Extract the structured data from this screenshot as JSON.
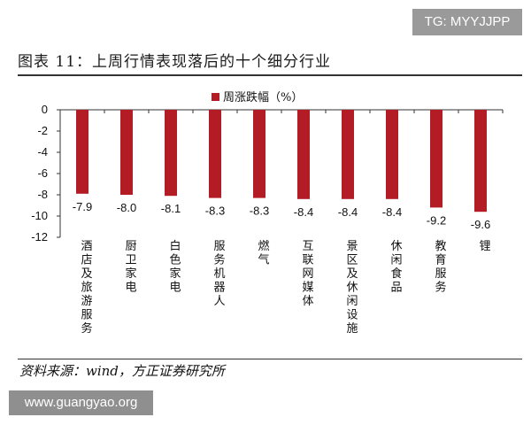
{
  "watermark_top": "TG: MYYJJPP",
  "figure_title": "图表 11：上周行情表现落后的十个细分行业",
  "source_note": "资料来源：wind，方正证券研究所",
  "watermark_bottom": "www.guangyao.org",
  "colors": {
    "bar": "#b31b25",
    "axis": "#333333"
  },
  "chart_data": {
    "type": "bar",
    "categories": [
      "酒店及旅游服务",
      "厨卫家电",
      "白色家电",
      "服务机器人",
      "燃气",
      "互联网媒体",
      "景区及休闲设施",
      "休闲食品",
      "教育服务",
      "锂"
    ],
    "series": [
      {
        "name": "周涨跌幅（%）",
        "values": [
          -7.9,
          -8.0,
          -8.1,
          -8.3,
          -8.3,
          -8.4,
          -8.4,
          -8.4,
          -9.2,
          -9.6
        ]
      }
    ],
    "data_labels": [
      "-7.9",
      "-8.0",
      "-8.1",
      "-8.3",
      "-8.3",
      "-8.4",
      "-8.4",
      "-8.4",
      "-9.2",
      "-9.6"
    ],
    "yticks": [
      "0",
      "-2",
      "-4",
      "-6",
      "-8",
      "-10",
      "-12"
    ],
    "ylim": [
      -12,
      0
    ],
    "legend_position": "top-center",
    "grid": false
  }
}
